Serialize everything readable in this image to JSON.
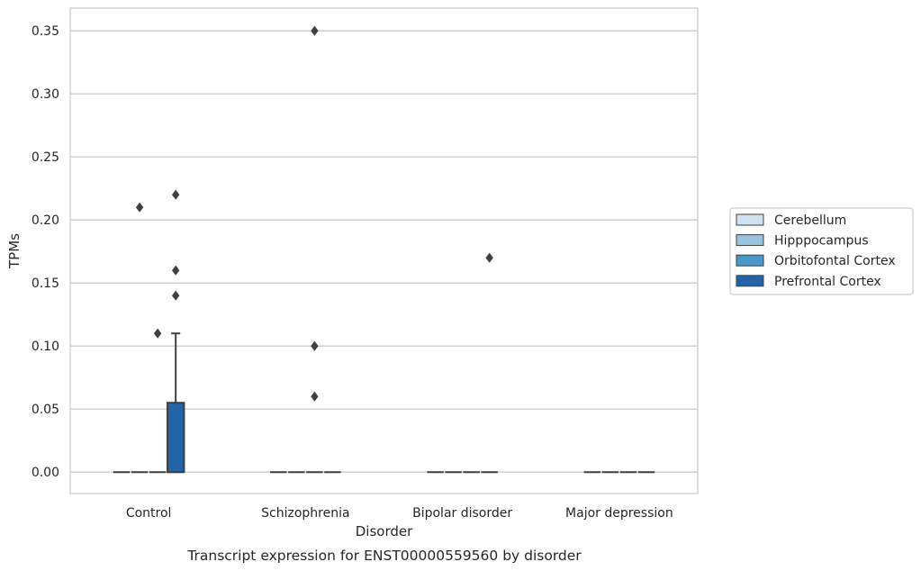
{
  "chart_data": {
    "type": "box",
    "caption": "Transcript expression for ENST00000559560 by disorder",
    "xlabel": "Disorder",
    "ylabel": "TPMs",
    "ylim": [
      -0.017,
      0.368
    ],
    "yticks": [
      0.0,
      0.05,
      0.1,
      0.15,
      0.2,
      0.25,
      0.3,
      0.35
    ],
    "ytick_labels": [
      "0.00",
      "0.05",
      "0.10",
      "0.15",
      "0.20",
      "0.25",
      "0.30",
      "0.35"
    ],
    "grid": true,
    "legend_position": "right",
    "categories": [
      "Control",
      "Schizophrenia",
      "Bipolar disorder",
      "Major depression"
    ],
    "series": [
      {
        "name": "Cerebellum",
        "color": "#d0e1f2",
        "boxes": [
          {
            "q1": 0,
            "median": 0,
            "q3": 0,
            "whisker_low": 0,
            "whisker_high": 0,
            "outliers": []
          },
          {
            "q1": 0,
            "median": 0,
            "q3": 0,
            "whisker_low": 0,
            "whisker_high": 0,
            "outliers": []
          },
          {
            "q1": 0,
            "median": 0,
            "q3": 0,
            "whisker_low": 0,
            "whisker_high": 0,
            "outliers": []
          },
          {
            "q1": 0,
            "median": 0,
            "q3": 0,
            "whisker_low": 0,
            "whisker_high": 0,
            "outliers": []
          }
        ]
      },
      {
        "name": "Hipppocampus",
        "color": "#94c4df",
        "boxes": [
          {
            "q1": 0,
            "median": 0,
            "q3": 0,
            "whisker_low": 0,
            "whisker_high": 0,
            "outliers": [
              0.21
            ]
          },
          {
            "q1": 0,
            "median": 0,
            "q3": 0,
            "whisker_low": 0,
            "whisker_high": 0,
            "outliers": []
          },
          {
            "q1": 0,
            "median": 0,
            "q3": 0,
            "whisker_low": 0,
            "whisker_high": 0,
            "outliers": []
          },
          {
            "q1": 0,
            "median": 0,
            "q3": 0,
            "whisker_low": 0,
            "whisker_high": 0,
            "outliers": []
          }
        ]
      },
      {
        "name": "Orbitofontal Cortex",
        "color": "#4a98c9",
        "boxes": [
          {
            "q1": 0,
            "median": 0,
            "q3": 0,
            "whisker_low": 0,
            "whisker_high": 0,
            "outliers": [
              0.11
            ]
          },
          {
            "q1": 0,
            "median": 0,
            "q3": 0,
            "whisker_low": 0,
            "whisker_high": 0,
            "outliers": [
              0.35,
              0.1,
              0.06
            ]
          },
          {
            "q1": 0,
            "median": 0,
            "q3": 0,
            "whisker_low": 0,
            "whisker_high": 0,
            "outliers": []
          },
          {
            "q1": 0,
            "median": 0,
            "q3": 0,
            "whisker_low": 0,
            "whisker_high": 0,
            "outliers": []
          }
        ]
      },
      {
        "name": "Prefrontal Cortex",
        "color": "#2264aa",
        "boxes": [
          {
            "q1": 0,
            "median": 0,
            "q3": 0.055,
            "whisker_low": 0,
            "whisker_high": 0.11,
            "outliers": [
              0.22,
              0.16,
              0.14
            ]
          },
          {
            "q1": 0,
            "median": 0,
            "q3": 0,
            "whisker_low": 0,
            "whisker_high": 0,
            "outliers": []
          },
          {
            "q1": 0,
            "median": 0,
            "q3": 0,
            "whisker_low": 0,
            "whisker_high": 0,
            "outliers": [
              0.17
            ]
          },
          {
            "q1": 0,
            "median": 0,
            "q3": 0,
            "whisker_low": 0,
            "whisker_high": 0,
            "outliers": []
          }
        ]
      }
    ]
  }
}
